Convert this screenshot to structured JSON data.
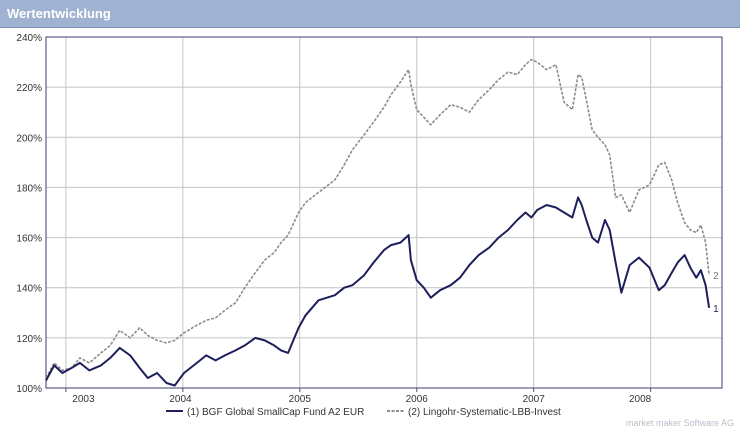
{
  "panel": {
    "title": "Wertentwicklung"
  },
  "footer": {
    "credit": "market maker Software AG"
  },
  "colors": {
    "series1": "#1c1f5b",
    "series2": "#8c8c8c",
    "grid": "#c4c4c4",
    "header": "#9fb2d1"
  },
  "chart_data": {
    "type": "line",
    "title": "",
    "xlabel": "",
    "ylabel": "",
    "y_format": "percent",
    "ylim": [
      100,
      240
    ],
    "yticks": [
      100,
      120,
      140,
      160,
      180,
      200,
      220,
      240
    ],
    "xlim": [
      2002.83,
      2008.61
    ],
    "year_boundaries": [
      2003,
      2004,
      2005,
      2006,
      2007,
      2008
    ],
    "xtick_labels": [
      {
        "label": "2003",
        "x": 2003.15
      },
      {
        "label": "2004",
        "x": 2003.98
      },
      {
        "label": "2005",
        "x": 2005.0
      },
      {
        "label": "2006",
        "x": 2006.0
      },
      {
        "label": "2007",
        "x": 2007.0
      },
      {
        "label": "2008",
        "x": 2007.91
      }
    ],
    "grid": true,
    "legend": "bottom",
    "series": [
      {
        "name": "(1)  BGF Global SmallCap Fund A2 EUR",
        "end_label": "1",
        "x": [
          2002.83,
          2002.9,
          2002.97,
          2003.05,
          2003.12,
          2003.2,
          2003.3,
          2003.38,
          2003.46,
          2003.55,
          2003.63,
          2003.7,
          2003.78,
          2003.86,
          2003.93,
          2004.01,
          2004.12,
          2004.2,
          2004.28,
          2004.36,
          2004.45,
          2004.53,
          2004.62,
          2004.7,
          2004.78,
          2004.84,
          2004.9,
          2004.99,
          2005.05,
          2005.16,
          2005.3,
          2005.38,
          2005.45,
          2005.55,
          2005.63,
          2005.72,
          2005.78,
          2005.86,
          2005.93,
          2005.95,
          2006.0,
          2006.06,
          2006.12,
          2006.2,
          2006.29,
          2006.37,
          2006.45,
          2006.53,
          2006.62,
          2006.7,
          2006.78,
          2006.86,
          2006.93,
          2006.98,
          2007.03,
          2007.11,
          2007.19,
          2007.26,
          2007.33,
          2007.38,
          2007.41,
          2007.45,
          2007.5,
          2007.55,
          2007.61,
          2007.65,
          2007.7,
          2007.75,
          2007.82,
          2007.9,
          2007.99,
          2008.07,
          2008.12,
          2008.18,
          2008.23,
          2008.29,
          2008.34,
          2008.39,
          2008.43,
          2008.47,
          2008.5
        ],
        "values": [
          103,
          109,
          106,
          108,
          110,
          107,
          109,
          112,
          116,
          113,
          108,
          104,
          106,
          102,
          101,
          106,
          110,
          113,
          111,
          113,
          115,
          117,
          120,
          119,
          117,
          115,
          114,
          124,
          129,
          135,
          137,
          140,
          141,
          145,
          150,
          155,
          157,
          158,
          161,
          151,
          143,
          140,
          136,
          139,
          141,
          144,
          149,
          153,
          156,
          160,
          163,
          167,
          170,
          168,
          171,
          173,
          172,
          170,
          168,
          176,
          173,
          167,
          160,
          158,
          167,
          163,
          150,
          138,
          149,
          152,
          148,
          139,
          141,
          146,
          150,
          153,
          148,
          144,
          147,
          141,
          132
        ]
      },
      {
        "name": "(2)  Lingohr-Systematic-LBB-Invest",
        "end_label": "2",
        "x": [
          2002.83,
          2002.9,
          2002.97,
          2003.05,
          2003.12,
          2003.2,
          2003.3,
          2003.38,
          2003.46,
          2003.55,
          2003.63,
          2003.7,
          2003.78,
          2003.86,
          2003.93,
          2004.01,
          2004.12,
          2004.2,
          2004.28,
          2004.36,
          2004.45,
          2004.53,
          2004.62,
          2004.7,
          2004.78,
          2004.84,
          2004.9,
          2004.99,
          2005.05,
          2005.16,
          2005.3,
          2005.38,
          2005.45,
          2005.55,
          2005.63,
          2005.72,
          2005.78,
          2005.86,
          2005.93,
          2005.95,
          2006.0,
          2006.06,
          2006.12,
          2006.2,
          2006.29,
          2006.37,
          2006.45,
          2006.53,
          2006.62,
          2006.7,
          2006.78,
          2006.86,
          2006.93,
          2006.98,
          2007.03,
          2007.11,
          2007.19,
          2007.26,
          2007.33,
          2007.38,
          2007.41,
          2007.45,
          2007.5,
          2007.55,
          2007.61,
          2007.65,
          2007.7,
          2007.75,
          2007.82,
          2007.9,
          2007.99,
          2008.07,
          2008.12,
          2008.18,
          2008.23,
          2008.29,
          2008.34,
          2008.39,
          2008.43,
          2008.47,
          2008.5
        ],
        "values": [
          104,
          110,
          107,
          108,
          112,
          110,
          114,
          117,
          123,
          120,
          124,
          121,
          119,
          118,
          119,
          122,
          125,
          127,
          128,
          131,
          134,
          140,
          146,
          151,
          154,
          158,
          161,
          170,
          174,
          178,
          183,
          189,
          195,
          201,
          206,
          212,
          217,
          222,
          227,
          221,
          211,
          208,
          205,
          209,
          213,
          212,
          210,
          215,
          219,
          223,
          226,
          225,
          229,
          231,
          230,
          227,
          229,
          214,
          211,
          225,
          224,
          215,
          203,
          200,
          197,
          193,
          176,
          177,
          170,
          179,
          181,
          189,
          190,
          183,
          174,
          166,
          163,
          162,
          165,
          158,
          145
        ]
      }
    ]
  }
}
